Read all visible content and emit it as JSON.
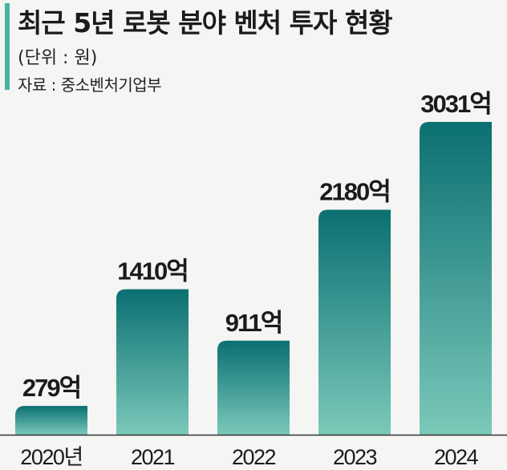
{
  "header": {
    "title": "최근 5년 로봇 분야 벤처 투자 현황",
    "unit": "(단위 : 원)",
    "source": "자료 : 중소벤처기업부"
  },
  "colors": {
    "accent": "#46b3a0",
    "bar_top": "#0b6f71",
    "bar_bottom": "#7ac9b9",
    "axis": "#333333"
  },
  "chart_data": {
    "type": "bar",
    "categories": [
      "2020년",
      "2021",
      "2022",
      "2023",
      "2024"
    ],
    "values": [
      279,
      1410,
      911,
      2180,
      3031
    ],
    "data_labels": [
      "279억",
      "1410억",
      "911억",
      "2180억",
      "3031억"
    ],
    "title": "최근 5년 로봇 분야 벤처 투자 현황",
    "xlabel": "",
    "ylabel": "",
    "ylim": [
      0,
      3031
    ],
    "grid": false
  }
}
